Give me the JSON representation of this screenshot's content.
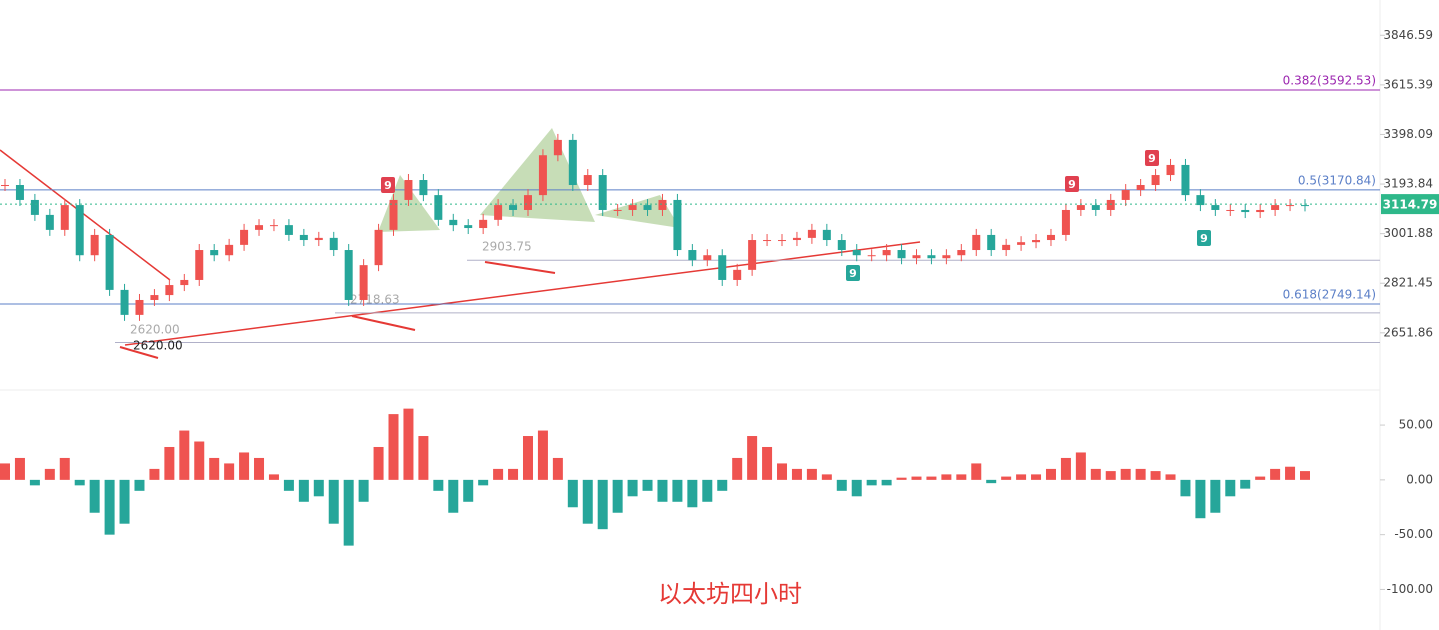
{
  "chart_data": [
    {
      "type": "candlestick",
      "log_scale": true,
      "ylim": [
        2500,
        4020
      ],
      "yticks": [
        3846.59,
        3615.39,
        3398.09,
        3193.84,
        3001.88,
        2821.45,
        2651.86
      ],
      "up_color": "#ef5350",
      "down_color": "#26a69a",
      "values": [
        3190,
        3131,
        3073,
        3016,
        3111,
        2922,
        2997,
        2798,
        2712,
        2763,
        2780,
        2815,
        2833,
        2941,
        2922,
        2960,
        3016,
        3034,
        3034,
        2997,
        2978,
        2986,
        2941,
        2763,
        2886,
        3016,
        3131,
        3210,
        3150,
        3054,
        3034,
        3023,
        3054,
        3111,
        3092,
        3150,
        3311,
        3375,
        3190,
        3230,
        3092,
        3092,
        3111,
        3092,
        3131,
        2941,
        2904,
        2922,
        2833,
        2869,
        2978,
        2978,
        2978,
        2986,
        3016,
        2978,
        2941,
        2922,
        2922,
        2941,
        2911,
        2922,
        2911,
        2922,
        2941,
        2997,
        2941,
        2960,
        2970,
        2978,
        2997,
        3092,
        3111,
        3092,
        3131,
        3170,
        3190,
        3230,
        3271,
        3150,
        3111,
        3092,
        3092,
        3084,
        3092,
        3111,
        3111,
        3110
      ],
      "levels": [
        {
          "label": "0.382(3592.53)",
          "value": 3592.53,
          "color": "#9c27b0"
        },
        {
          "label": "0.5(3170.84)",
          "value": 3170.84,
          "color": "#5b7fc7"
        },
        {
          "label": "0.618(2749.14)",
          "value": 2749.14,
          "color": "#5b7fc7"
        }
      ],
      "annotations": [
        {
          "text": "2620.00",
          "value": 2620
        },
        {
          "text": "2620.00",
          "value": 2620
        },
        {
          "text": "2718.63",
          "value": 2718.63
        },
        {
          "text": "2903.75",
          "value": 2903.75
        }
      ],
      "signals": [
        {
          "text": "9",
          "color": "#e0404f"
        },
        {
          "text": "9",
          "color": "#e0404f"
        },
        {
          "text": "9",
          "color": "#e0404f"
        },
        {
          "text": "9",
          "color": "#26a69a"
        },
        {
          "text": "9",
          "color": "#26a69a"
        }
      ],
      "last_price": 3114.79,
      "last_color": "#2eb88a",
      "title": "以太坊四小时"
    },
    {
      "type": "bar",
      "ylim": [
        -137,
        82
      ],
      "yticks": [
        {
          "value": 50,
          "label": "50.00"
        },
        {
          "value": 0,
          "label": "0.00"
        },
        {
          "value": -50,
          "label": "-50.00"
        },
        {
          "value": -100,
          "label": "-100.00"
        }
      ],
      "up_color": "#ef5350",
      "down_color": "#26a69a",
      "values": [
        15,
        20,
        -5,
        10,
        20,
        -5,
        -30,
        -50,
        -40,
        -10,
        10,
        30,
        45,
        35,
        20,
        15,
        25,
        20,
        5,
        -10,
        -20,
        -15,
        -40,
        -60,
        -20,
        30,
        60,
        65,
        40,
        -10,
        -30,
        -20,
        -5,
        10,
        10,
        40,
        45,
        20,
        -25,
        -40,
        -45,
        -30,
        -15,
        -10,
        -20,
        -20,
        -25,
        -20,
        -10,
        20,
        40,
        30,
        15,
        10,
        10,
        5,
        -10,
        -15,
        -5,
        -5,
        2,
        3,
        3,
        5,
        5,
        15,
        -3,
        3,
        5,
        5,
        10,
        20,
        25,
        10,
        8,
        10,
        10,
        8,
        5,
        -15,
        -35,
        -30,
        -15,
        -8,
        3,
        10,
        12,
        8
      ]
    }
  ]
}
